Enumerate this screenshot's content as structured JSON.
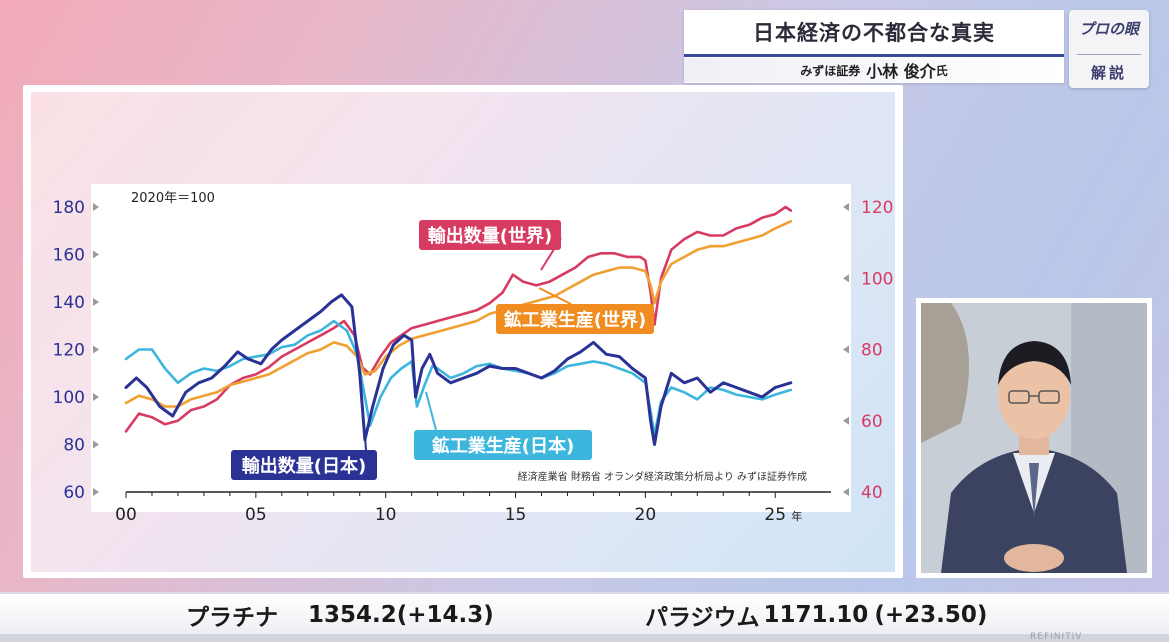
{
  "header": {
    "title": "日本経済の不都合な真実",
    "firm": "みずほ証券",
    "person": "小林 俊介",
    "honorific": "氏"
  },
  "badge": {
    "top": "プロの眼",
    "bottom": "解説"
  },
  "chart_data": {
    "type": "line",
    "base_note": "2020年＝100",
    "source": "経済産業省  財務省  オランダ経済政策分析局より  みずほ証券作成",
    "x_unit": "年",
    "x_ticks": [
      "00",
      "05",
      "10",
      "15",
      "20",
      "25"
    ],
    "x_range": [
      2000,
      2025.8
    ],
    "y_left": {
      "range": [
        60,
        180
      ],
      "ticks": [
        60,
        80,
        100,
        120,
        140,
        160,
        180
      ]
    },
    "y_right": {
      "range": [
        40,
        120
      ],
      "ticks": [
        40,
        60,
        80,
        100,
        120
      ]
    },
    "series": [
      {
        "name": "輸出数量(世界)",
        "axis": "right",
        "color": "#d83b62",
        "points": [
          [
            2000.0,
            57
          ],
          [
            2000.5,
            62
          ],
          [
            2001.0,
            61
          ],
          [
            2001.5,
            59
          ],
          [
            2002.0,
            60
          ],
          [
            2002.5,
            63
          ],
          [
            2003.0,
            64
          ],
          [
            2003.5,
            66
          ],
          [
            2004.0,
            70
          ],
          [
            2004.5,
            72
          ],
          [
            2005.0,
            73
          ],
          [
            2005.5,
            75
          ],
          [
            2006.0,
            78
          ],
          [
            2006.5,
            80
          ],
          [
            2007.0,
            82
          ],
          [
            2007.5,
            84
          ],
          [
            2008.0,
            86
          ],
          [
            2008.4,
            88
          ],
          [
            2008.8,
            84
          ],
          [
            2009.1,
            75
          ],
          [
            2009.4,
            73
          ],
          [
            2009.8,
            78
          ],
          [
            2010.2,
            82
          ],
          [
            2010.6,
            84
          ],
          [
            2011.0,
            86
          ],
          [
            2011.5,
            87
          ],
          [
            2012.0,
            88
          ],
          [
            2012.5,
            89
          ],
          [
            2013.0,
            90
          ],
          [
            2013.5,
            91
          ],
          [
            2014.0,
            93
          ],
          [
            2014.5,
            96
          ],
          [
            2014.9,
            101
          ],
          [
            2015.3,
            99
          ],
          [
            2015.8,
            98
          ],
          [
            2016.3,
            99
          ],
          [
            2016.8,
            101
          ],
          [
            2017.3,
            103
          ],
          [
            2017.8,
            106
          ],
          [
            2018.3,
            107
          ],
          [
            2018.8,
            107
          ],
          [
            2019.3,
            106
          ],
          [
            2019.8,
            106
          ],
          [
            2020.0,
            105
          ],
          [
            2020.2,
            96
          ],
          [
            2020.35,
            87
          ],
          [
            2020.6,
            100
          ],
          [
            2021.0,
            108
          ],
          [
            2021.5,
            111
          ],
          [
            2022.0,
            113
          ],
          [
            2022.5,
            112
          ],
          [
            2023.0,
            112
          ],
          [
            2023.5,
            114
          ],
          [
            2024.0,
            115
          ],
          [
            2024.5,
            117
          ],
          [
            2025.0,
            118
          ],
          [
            2025.4,
            120
          ],
          [
            2025.6,
            119
          ]
        ]
      },
      {
        "name": "鉱工業生産(世界)",
        "axis": "right",
        "color": "#f0a030",
        "points": [
          [
            2000.0,
            65
          ],
          [
            2000.5,
            67
          ],
          [
            2001.0,
            66
          ],
          [
            2001.5,
            64
          ],
          [
            2002.0,
            64
          ],
          [
            2002.5,
            66
          ],
          [
            2003.0,
            67
          ],
          [
            2003.5,
            68
          ],
          [
            2004.0,
            70
          ],
          [
            2004.5,
            71
          ],
          [
            2005.0,
            72
          ],
          [
            2005.5,
            73
          ],
          [
            2006.0,
            75
          ],
          [
            2006.5,
            77
          ],
          [
            2007.0,
            79
          ],
          [
            2007.5,
            80
          ],
          [
            2008.0,
            82
          ],
          [
            2008.5,
            81
          ],
          [
            2008.9,
            78
          ],
          [
            2009.2,
            73
          ],
          [
            2009.6,
            74
          ],
          [
            2010.0,
            78
          ],
          [
            2010.5,
            81
          ],
          [
            2011.0,
            83
          ],
          [
            2011.5,
            84
          ],
          [
            2012.0,
            85
          ],
          [
            2012.5,
            86
          ],
          [
            2013.0,
            87
          ],
          [
            2013.5,
            88
          ],
          [
            2014.0,
            90
          ],
          [
            2014.5,
            91
          ],
          [
            2015.0,
            92
          ],
          [
            2015.5,
            93
          ],
          [
            2016.0,
            94
          ],
          [
            2016.5,
            95
          ],
          [
            2017.0,
            97
          ],
          [
            2017.5,
            99
          ],
          [
            2018.0,
            101
          ],
          [
            2018.5,
            102
          ],
          [
            2019.0,
            103
          ],
          [
            2019.5,
            103
          ],
          [
            2020.0,
            102
          ],
          [
            2020.2,
            98
          ],
          [
            2020.35,
            93
          ],
          [
            2020.6,
            99
          ],
          [
            2021.0,
            104
          ],
          [
            2021.5,
            106
          ],
          [
            2022.0,
            108
          ],
          [
            2022.5,
            109
          ],
          [
            2023.0,
            109
          ],
          [
            2023.5,
            110
          ],
          [
            2024.0,
            111
          ],
          [
            2024.5,
            112
          ],
          [
            2025.0,
            114
          ],
          [
            2025.6,
            116
          ]
        ]
      },
      {
        "name": "鉱工業生産(日本)",
        "axis": "left",
        "color": "#3db6de",
        "points": [
          [
            2000.0,
            116
          ],
          [
            2000.5,
            120
          ],
          [
            2001.0,
            120
          ],
          [
            2001.5,
            112
          ],
          [
            2002.0,
            106
          ],
          [
            2002.5,
            110
          ],
          [
            2003.0,
            112
          ],
          [
            2003.5,
            111
          ],
          [
            2004.0,
            113
          ],
          [
            2004.5,
            116
          ],
          [
            2005.0,
            117
          ],
          [
            2005.5,
            118
          ],
          [
            2006.0,
            121
          ],
          [
            2006.5,
            122
          ],
          [
            2007.0,
            126
          ],
          [
            2007.5,
            128
          ],
          [
            2008.0,
            132
          ],
          [
            2008.5,
            128
          ],
          [
            2008.9,
            118
          ],
          [
            2009.2,
            100
          ],
          [
            2009.4,
            88
          ],
          [
            2009.8,
            100
          ],
          [
            2010.2,
            108
          ],
          [
            2010.6,
            112
          ],
          [
            2011.0,
            115
          ],
          [
            2011.2,
            96
          ],
          [
            2011.5,
            105
          ],
          [
            2011.8,
            113
          ],
          [
            2012.0,
            112
          ],
          [
            2012.5,
            108
          ],
          [
            2013.0,
            110
          ],
          [
            2013.5,
            113
          ],
          [
            2014.0,
            114
          ],
          [
            2014.5,
            112
          ],
          [
            2015.0,
            111
          ],
          [
            2015.5,
            110
          ],
          [
            2016.0,
            108
          ],
          [
            2016.5,
            110
          ],
          [
            2017.0,
            113
          ],
          [
            2017.5,
            114
          ],
          [
            2018.0,
            115
          ],
          [
            2018.5,
            114
          ],
          [
            2019.0,
            112
          ],
          [
            2019.5,
            110
          ],
          [
            2020.0,
            106
          ],
          [
            2020.2,
            94
          ],
          [
            2020.35,
            84
          ],
          [
            2020.6,
            98
          ],
          [
            2021.0,
            104
          ],
          [
            2021.5,
            102
          ],
          [
            2022.0,
            99
          ],
          [
            2022.5,
            104
          ],
          [
            2023.0,
            103
          ],
          [
            2023.5,
            101
          ],
          [
            2024.0,
            100
          ],
          [
            2024.5,
            99
          ],
          [
            2025.0,
            101
          ],
          [
            2025.6,
            103
          ]
        ]
      },
      {
        "name": "輸出数量(日本)",
        "axis": "left",
        "color": "#2a3296",
        "points": [
          [
            2000.0,
            104
          ],
          [
            2000.4,
            108
          ],
          [
            2000.8,
            104
          ],
          [
            2001.3,
            96
          ],
          [
            2001.8,
            92
          ],
          [
            2002.3,
            102
          ],
          [
            2002.8,
            106
          ],
          [
            2003.3,
            108
          ],
          [
            2003.8,
            113
          ],
          [
            2004.3,
            119
          ],
          [
            2004.7,
            116
          ],
          [
            2005.2,
            114
          ],
          [
            2005.6,
            120
          ],
          [
            2006.0,
            124
          ],
          [
            2006.5,
            128
          ],
          [
            2007.0,
            132
          ],
          [
            2007.5,
            136
          ],
          [
            2007.9,
            140
          ],
          [
            2008.3,
            143
          ],
          [
            2008.7,
            138
          ],
          [
            2009.0,
            110
          ],
          [
            2009.2,
            82
          ],
          [
            2009.5,
            96
          ],
          [
            2009.9,
            112
          ],
          [
            2010.3,
            122
          ],
          [
            2010.7,
            126
          ],
          [
            2011.0,
            124
          ],
          [
            2011.15,
            100
          ],
          [
            2011.4,
            112
          ],
          [
            2011.7,
            118
          ],
          [
            2012.0,
            110
          ],
          [
            2012.5,
            106
          ],
          [
            2013.0,
            108
          ],
          [
            2013.5,
            110
          ],
          [
            2014.0,
            113
          ],
          [
            2014.5,
            112
          ],
          [
            2015.0,
            112
          ],
          [
            2015.5,
            110
          ],
          [
            2016.0,
            108
          ],
          [
            2016.5,
            111
          ],
          [
            2017.0,
            116
          ],
          [
            2017.5,
            119
          ],
          [
            2018.0,
            123
          ],
          [
            2018.5,
            118
          ],
          [
            2019.0,
            117
          ],
          [
            2019.5,
            112
          ],
          [
            2020.0,
            108
          ],
          [
            2020.2,
            90
          ],
          [
            2020.35,
            80
          ],
          [
            2020.6,
            96
          ],
          [
            2021.0,
            110
          ],
          [
            2021.5,
            106
          ],
          [
            2022.0,
            108
          ],
          [
            2022.5,
            102
          ],
          [
            2023.0,
            106
          ],
          [
            2023.5,
            104
          ],
          [
            2024.0,
            102
          ],
          [
            2024.5,
            100
          ],
          [
            2025.0,
            104
          ],
          [
            2025.6,
            106
          ]
        ]
      }
    ],
    "annotations": [
      {
        "text": "輸出数量(世界)",
        "bg": "#d83b62"
      },
      {
        "text": "鉱工業生産(世界)",
        "bg": "#f08c20"
      },
      {
        "text": "鉱工業生産(日本)",
        "bg": "#3db6de"
      },
      {
        "text": "輸出数量(日本)",
        "bg": "#2a3296"
      }
    ]
  },
  "ticker": [
    {
      "name": "プラチナ",
      "value": "1354.2",
      "change": "(+14.3)"
    },
    {
      "name": "パラジウム",
      "value": "1171.10",
      "change": "(+23.50)"
    }
  ],
  "footer": {
    "brand": "REFINITIV"
  }
}
